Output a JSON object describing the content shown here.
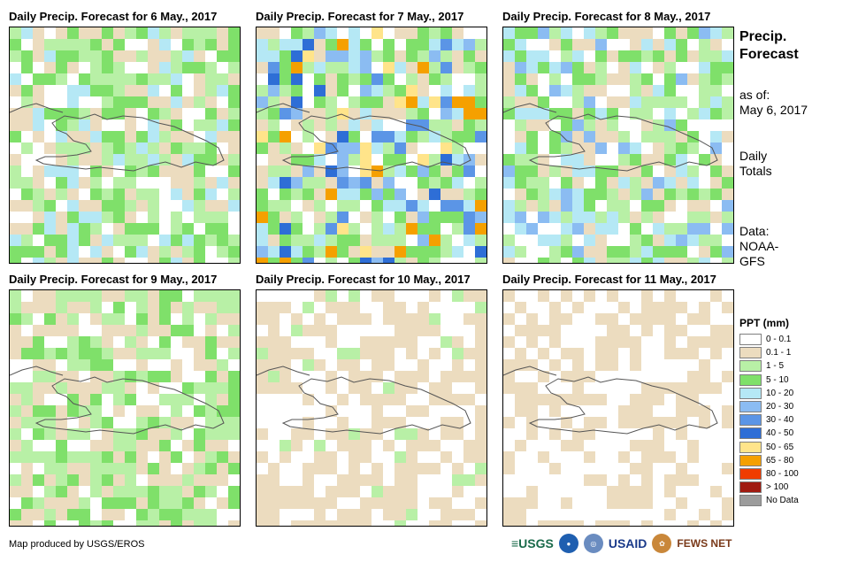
{
  "panels": [
    {
      "title": "Daily Precip. Forecast for 6 May., 2017",
      "seed": 11,
      "wet": 1.0
    },
    {
      "title": "Daily Precip. Forecast for 7 May., 2017",
      "seed": 27,
      "wet": 1.35
    },
    {
      "title": "Daily Precip. Forecast for 8 May., 2017",
      "seed": 43,
      "wet": 1.1
    },
    {
      "title": "Daily Precip. Forecast for 9 May., 2017",
      "seed": 59,
      "wet": 0.8
    },
    {
      "title": "Daily Precip. Forecast for 10 May., 2017",
      "seed": 71,
      "wet": 0.45
    },
    {
      "title": "Daily Precip. Forecast for 11 May., 2017",
      "seed": 89,
      "wet": 0.35
    }
  ],
  "side": {
    "title_line1": "Precip.",
    "title_line2": "Forecast",
    "asof_line1": "as of:",
    "asof_line2": "May 6, 2017",
    "daily_line1": "Daily",
    "daily_line2": "Totals",
    "data_line1": "Data:",
    "data_line2": "NOAA-",
    "data_line3": "GFS"
  },
  "legend": {
    "title": "PPT (mm)",
    "items": [
      {
        "label": "0 - 0.1",
        "color": "#ffffff"
      },
      {
        "label": "0.1 - 1",
        "color": "#ecdcbf"
      },
      {
        "label": "1 - 5",
        "color": "#b8f0a6"
      },
      {
        "label": "5 - 10",
        "color": "#7fe06a"
      },
      {
        "label": "10 - 20",
        "color": "#b5e8f5"
      },
      {
        "label": "20 - 30",
        "color": "#8bbcf2"
      },
      {
        "label": "30 - 40",
        "color": "#5b95e6"
      },
      {
        "label": "40 - 50",
        "color": "#2e6ed6"
      },
      {
        "label": "50 - 65",
        "color": "#ffe48a"
      },
      {
        "label": "65 - 80",
        "color": "#f5a000"
      },
      {
        "label": "80 - 100",
        "color": "#f03c00"
      },
      {
        "label": "> 100",
        "color": "#a01a10"
      },
      {
        "label": "No Data",
        "color": "#9c9c9c"
      }
    ]
  },
  "credit": "Map produced by USGS/EROS",
  "logos": {
    "usgs": "≡USGS",
    "usaid": "USAID",
    "fewsnet": "FEWS NET"
  }
}
